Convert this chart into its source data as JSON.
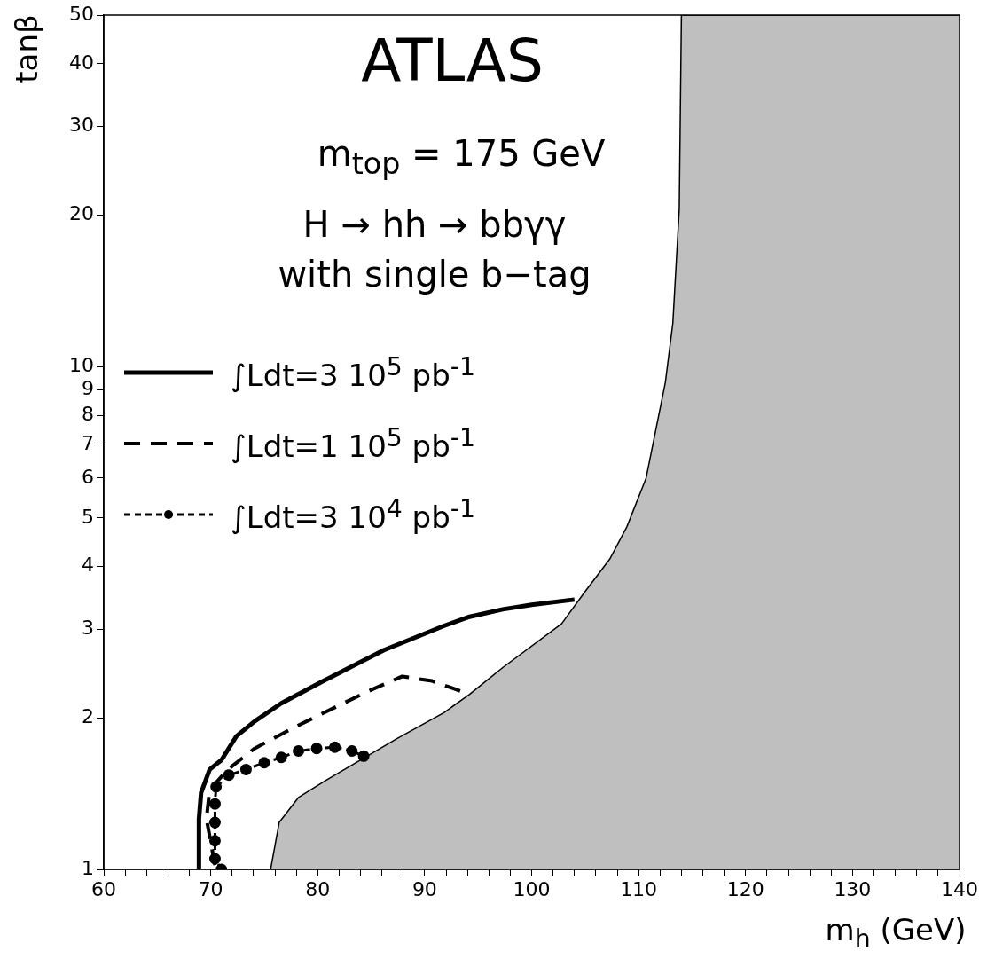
{
  "chart_data": {
    "type": "line",
    "title": "ATLAS",
    "subtitle": "m$_{top}$ = 175 GeV",
    "annotations": [
      "H → hh → bbγγ",
      "with single b−tag"
    ],
    "xlabel": "m$_{h}$ (GeV)",
    "ylabel": "tanβ",
    "xlim": [
      60,
      140
    ],
    "xticks": [
      60,
      {
        "value": 62,
        "label": null
      },
      {
        "value": 64,
        "label": null
      },
      {
        "value": 66,
        "label": null
      },
      {
        "value": 68,
        "label": null
      },
      70,
      {
        "value": 72,
        "label": null
      },
      {
        "value": 74,
        "label": null
      },
      {
        "value": 76,
        "label": null
      },
      {
        "value": 78,
        "label": null
      },
      80,
      {
        "value": 82,
        "label": null
      },
      {
        "value": 84,
        "label": null
      },
      {
        "value": 86,
        "label": null
      },
      {
        "value": 88,
        "label": null
      },
      90,
      {
        "value": 92,
        "label": null
      },
      {
        "value": 94,
        "label": null
      },
      {
        "value": 96,
        "label": null
      },
      {
        "value": 98,
        "label": null
      },
      100,
      {
        "value": 102,
        "label": null
      },
      {
        "value": 104,
        "label": null
      },
      {
        "value": 106,
        "label": null
      },
      {
        "value": 108,
        "label": null
      },
      110,
      {
        "value": 112,
        "label": null
      },
      {
        "value": 114,
        "label": null
      },
      {
        "value": 116,
        "label": null
      },
      {
        "value": 118,
        "label": null
      },
      120,
      {
        "value": 122,
        "label": null
      },
      {
        "value": 124,
        "label": null
      },
      {
        "value": 126,
        "label": null
      },
      {
        "value": 128,
        "label": null
      },
      130,
      {
        "value": 132,
        "label": null
      },
      {
        "value": 134,
        "label": null
      },
      {
        "value": 136,
        "label": null
      },
      {
        "value": 138,
        "label": null
      },
      140
    ],
    "ylim": [
      1,
      50
    ],
    "yticks": [
      1,
      2,
      3,
      4,
      5,
      6,
      7,
      8,
      9,
      10,
      20,
      30,
      40,
      50
    ],
    "log": "y",
    "grid": false,
    "legend": "left",
    "series": [
      {
        "type": "area",
        "color": "#000000",
        "x": [
          75.6,
          76.4,
          78.2,
          80.7,
          87.4,
          91.8,
          94.2,
          97.3,
          102.8,
          105.0,
          107.3,
          108.9,
          110.7,
          112.5,
          113.2,
          113.8,
          114.0,
          140
        ],
        "values": [
          1.0,
          1.24,
          1.39,
          1.5,
          1.82,
          2.05,
          2.23,
          2.52,
          3.08,
          3.57,
          4.14,
          4.8,
          6.0,
          9.3,
          12.2,
          20.6,
          50,
          50
        ]
      },
      {
        "name": "∫Ldt=3 10$^{5}$ pb$^{-1}$",
        "color": "#000000",
        "line_style": "solid",
        "x": [
          68.95,
          68.9,
          69.1,
          69.9,
          71.0,
          72.4,
          74.1,
          76.6,
          80.7,
          86.2,
          91.8,
          94.2,
          97.3,
          100.0,
          104.0
        ],
        "values": [
          1.0,
          1.26,
          1.42,
          1.58,
          1.65,
          1.84,
          1.97,
          2.14,
          2.38,
          2.73,
          3.05,
          3.18,
          3.29,
          3.36,
          3.44
        ]
      },
      {
        "name": "∫Ldt=1 10$^{5}$ pb$^{-1}$",
        "color": "#000000",
        "line_style": "dashed",
        "x": [
          70.4,
          69.6,
          69.9,
          71.6,
          74.1,
          77.9,
          82.4,
          85.1,
          87.9,
          90.7,
          94.2
        ],
        "values": [
          1.02,
          1.26,
          1.44,
          1.58,
          1.74,
          1.92,
          2.14,
          2.28,
          2.42,
          2.37,
          2.23
        ]
      },
      {
        "name": "∫Ldt=3 10$^{4}$ pb$^{-1}$",
        "color": "#000000",
        "line_style": "dotted",
        "marker": "circle",
        "x": [
          71.0,
          70.4,
          70.4,
          70.4,
          70.4,
          70.5,
          71.7,
          73.3,
          75.0,
          76.6,
          78.2,
          79.9,
          81.6,
          83.2,
          84.3
        ],
        "values": [
          1.0,
          1.05,
          1.14,
          1.24,
          1.35,
          1.46,
          1.54,
          1.58,
          1.63,
          1.67,
          1.72,
          1.74,
          1.75,
          1.72,
          1.68
        ]
      }
    ]
  }
}
